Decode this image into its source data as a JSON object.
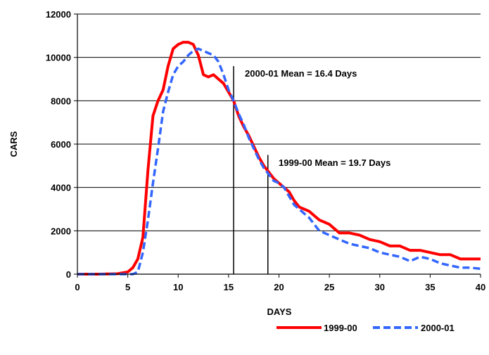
{
  "chart_data": {
    "type": "line",
    "title": "",
    "xlabel": "DAYS",
    "ylabel": "CARS",
    "xlim": [
      0,
      40
    ],
    "ylim": [
      0,
      12000
    ],
    "x_ticks": [
      0,
      5,
      10,
      15,
      20,
      25,
      30,
      35,
      40
    ],
    "y_ticks": [
      0,
      2000,
      4000,
      6000,
      8000,
      10000,
      12000
    ],
    "grid": "horizontal",
    "legend_position": "bottom-right",
    "series": [
      {
        "name": "1999-00",
        "color": "#ff0000",
        "style": "solid",
        "x": [
          0,
          2,
          4,
          5,
          5.5,
          6,
          6.5,
          7,
          7.5,
          8,
          8.5,
          9,
          9.5,
          10,
          10.5,
          11,
          11.5,
          12,
          12.5,
          13,
          13.5,
          14,
          14.5,
          15,
          15.5,
          16,
          16.5,
          17,
          17.5,
          18,
          18.5,
          19,
          19.5,
          20,
          20.5,
          21,
          21.5,
          22,
          22.5,
          23,
          23.5,
          24,
          24.5,
          25,
          25.5,
          26,
          27,
          28,
          29,
          30,
          31,
          32,
          33,
          34,
          35,
          36,
          37,
          38,
          39,
          40
        ],
        "y": [
          0,
          0,
          20,
          100,
          300,
          700,
          1700,
          4800,
          7300,
          8000,
          8500,
          9600,
          10400,
          10600,
          10700,
          10700,
          10600,
          10100,
          9200,
          9100,
          9200,
          9000,
          8800,
          8400,
          8000,
          7300,
          6800,
          6400,
          5900,
          5400,
          5000,
          4700,
          4400,
          4200,
          4000,
          3800,
          3400,
          3100,
          3000,
          2900,
          2700,
          2500,
          2400,
          2300,
          2100,
          1900,
          1900,
          1800,
          1600,
          1500,
          1300,
          1300,
          1100,
          1100,
          1000,
          900,
          900,
          700,
          700,
          700
        ]
      },
      {
        "name": "2000-01",
        "color": "#3366ff",
        "style": "dashed",
        "x": [
          0,
          2,
          4,
          5,
          5.5,
          6,
          6.5,
          7,
          7.5,
          8,
          8.5,
          9,
          9.5,
          10,
          10.5,
          11,
          11.5,
          12,
          12.5,
          13,
          13.5,
          14,
          14.5,
          15,
          15.5,
          16,
          16.5,
          17,
          17.5,
          18,
          18.5,
          19,
          19.5,
          20,
          20.5,
          21,
          21.5,
          22,
          22.5,
          23,
          23.5,
          24,
          25,
          26,
          27,
          28,
          29,
          30,
          31,
          32,
          33,
          34,
          35,
          36,
          37,
          38,
          39,
          40
        ],
        "y": [
          0,
          0,
          0,
          0,
          0,
          100,
          1000,
          2500,
          4200,
          5800,
          7500,
          8400,
          9200,
          9600,
          9800,
          10100,
          10300,
          10400,
          10300,
          10200,
          10100,
          9800,
          9200,
          8500,
          8000,
          7400,
          6900,
          6300,
          5800,
          5300,
          4900,
          4600,
          4300,
          4200,
          4000,
          3600,
          3200,
          3000,
          2800,
          2600,
          2300,
          2000,
          1800,
          1600,
          1400,
          1300,
          1200,
          1000,
          900,
          800,
          600,
          800,
          700,
          500,
          400,
          300,
          300,
          250
        ]
      }
    ],
    "annotations": [
      {
        "text": "2000-01 Mean = 16.4 Days",
        "x": 15.5,
        "line_top": 9600
      },
      {
        "text": "1999-00 Mean = 19.7 Days",
        "x": 18.9,
        "line_top": 5500
      }
    ]
  }
}
